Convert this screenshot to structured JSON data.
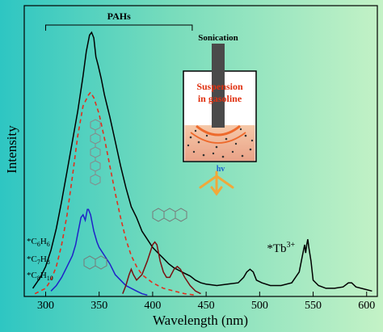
{
  "chart_data": {
    "type": "line",
    "xlabel": "Wavelength (nm)",
    "ylabel": "Intensity",
    "xlim": [
      280,
      610
    ],
    "ylim": [
      0,
      1.0
    ],
    "x_ticks": [
      300,
      350,
      400,
      450,
      500,
      550,
      600
    ],
    "y_ticks_shown": false,
    "grid": false,
    "background": "teal-to-light-green gradient",
    "annotations": {
      "pahs_label": "PAHs",
      "pahs_span": [
        300,
        437
      ],
      "tb_label": "*Tb",
      "tb_superscript": "3+",
      "small_molecules": [
        {
          "prefix": "*C",
          "s1": "6",
          "mid": "H",
          "s2": "6"
        },
        {
          "prefix": "*C",
          "s1": "7",
          "mid": "H",
          "s2": "8"
        },
        {
          "prefix": "*C",
          "s1": "8",
          "mid": "H",
          "s2": "10"
        }
      ],
      "inset": {
        "sonication": "Sonication",
        "suspension_line1": "Suspension",
        "suspension_line2": "in gasoline",
        "hv": "hv"
      }
    },
    "series": [
      {
        "color": "#000000",
        "style": "solid",
        "points": [
          [
            288,
            0.03
          ],
          [
            295,
            0.07
          ],
          [
            300,
            0.11
          ],
          [
            305,
            0.17
          ],
          [
            310,
            0.25
          ],
          [
            315,
            0.35
          ],
          [
            320,
            0.46
          ],
          [
            325,
            0.57
          ],
          [
            330,
            0.68
          ],
          [
            335,
            0.81
          ],
          [
            338,
            0.9
          ],
          [
            341,
            0.96
          ],
          [
            343,
            0.97
          ],
          [
            345,
            0.95
          ],
          [
            347,
            0.88
          ],
          [
            349,
            0.85
          ],
          [
            352,
            0.8
          ],
          [
            355,
            0.74
          ],
          [
            360,
            0.66
          ],
          [
            365,
            0.57
          ],
          [
            370,
            0.48
          ],
          [
            375,
            0.4
          ],
          [
            380,
            0.33
          ],
          [
            385,
            0.29
          ],
          [
            390,
            0.24
          ],
          [
            395,
            0.21
          ],
          [
            400,
            0.18
          ],
          [
            405,
            0.16
          ],
          [
            410,
            0.14
          ],
          [
            415,
            0.12
          ],
          [
            420,
            0.105
          ],
          [
            425,
            0.095
          ],
          [
            430,
            0.085
          ],
          [
            435,
            0.075
          ],
          [
            440,
            0.06
          ],
          [
            445,
            0.05
          ],
          [
            450,
            0.045
          ],
          [
            460,
            0.04
          ],
          [
            470,
            0.045
          ],
          [
            480,
            0.05
          ],
          [
            485,
            0.07
          ],
          [
            488,
            0.09
          ],
          [
            491,
            0.1
          ],
          [
            494,
            0.09
          ],
          [
            497,
            0.06
          ],
          [
            502,
            0.05
          ],
          [
            510,
            0.04
          ],
          [
            520,
            0.04
          ],
          [
            530,
            0.05
          ],
          [
            537,
            0.09
          ],
          [
            540,
            0.15
          ],
          [
            542,
            0.19
          ],
          [
            543,
            0.16
          ],
          [
            544,
            0.19
          ],
          [
            545,
            0.21
          ],
          [
            546,
            0.18
          ],
          [
            548,
            0.13
          ],
          [
            550,
            0.06
          ],
          [
            555,
            0.04
          ],
          [
            562,
            0.03
          ],
          [
            570,
            0.03
          ],
          [
            578,
            0.035
          ],
          [
            583,
            0.05
          ],
          [
            586,
            0.05
          ],
          [
            590,
            0.035
          ],
          [
            600,
            0.025
          ],
          [
            605,
            0.02
          ]
        ]
      },
      {
        "color": "#e0301e",
        "style": "dashed",
        "points": [
          [
            290,
            0.01
          ],
          [
            300,
            0.03
          ],
          [
            305,
            0.06
          ],
          [
            310,
            0.11
          ],
          [
            315,
            0.19
          ],
          [
            320,
            0.3
          ],
          [
            325,
            0.44
          ],
          [
            330,
            0.59
          ],
          [
            335,
            0.7
          ],
          [
            340,
            0.74
          ],
          [
            342,
            0.75
          ],
          [
            345,
            0.73
          ],
          [
            350,
            0.67
          ],
          [
            355,
            0.58
          ],
          [
            360,
            0.48
          ],
          [
            365,
            0.38
          ],
          [
            370,
            0.29
          ],
          [
            375,
            0.21
          ],
          [
            380,
            0.15
          ],
          [
            385,
            0.11
          ],
          [
            390,
            0.08
          ],
          [
            400,
            0.05
          ],
          [
            410,
            0.03
          ],
          [
            420,
            0.02
          ],
          [
            430,
            0.01
          ],
          [
            440,
            0.005
          ]
        ]
      },
      {
        "color": "#1f22c8",
        "style": "solid",
        "points": [
          [
            305,
            0.02
          ],
          [
            310,
            0.04
          ],
          [
            315,
            0.07
          ],
          [
            320,
            0.11
          ],
          [
            325,
            0.15
          ],
          [
            328,
            0.19
          ],
          [
            330,
            0.23
          ],
          [
            333,
            0.29
          ],
          [
            335,
            0.3
          ],
          [
            337,
            0.28
          ],
          [
            339,
            0.32
          ],
          [
            340,
            0.32
          ],
          [
            342,
            0.3
          ],
          [
            345,
            0.24
          ],
          [
            348,
            0.2
          ],
          [
            350,
            0.18
          ],
          [
            355,
            0.15
          ],
          [
            360,
            0.12
          ],
          [
            365,
            0.08
          ],
          [
            370,
            0.06
          ],
          [
            375,
            0.04
          ],
          [
            380,
            0.03
          ],
          [
            385,
            0.02
          ],
          [
            390,
            0.01
          ],
          [
            395,
            0.005
          ]
        ]
      },
      {
        "color": "#7a1010",
        "style": "solid",
        "points": [
          [
            372,
            0.01
          ],
          [
            375,
            0.04
          ],
          [
            378,
            0.08
          ],
          [
            380,
            0.1
          ],
          [
            382,
            0.08
          ],
          [
            385,
            0.06
          ],
          [
            390,
            0.08
          ],
          [
            395,
            0.13
          ],
          [
            400,
            0.19
          ],
          [
            402,
            0.2
          ],
          [
            404,
            0.19
          ],
          [
            407,
            0.13
          ],
          [
            410,
            0.09
          ],
          [
            413,
            0.07
          ],
          [
            416,
            0.07
          ],
          [
            420,
            0.1
          ],
          [
            423,
            0.11
          ],
          [
            426,
            0.1
          ],
          [
            430,
            0.07
          ],
          [
            435,
            0.04
          ],
          [
            440,
            0.02
          ],
          [
            445,
            0.01
          ]
        ]
      }
    ]
  }
}
